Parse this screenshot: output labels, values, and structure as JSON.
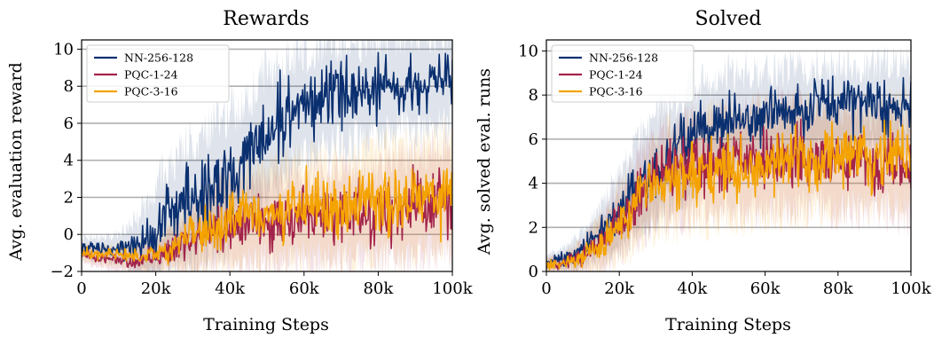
{
  "chart_data": [
    {
      "type": "line",
      "title": "Rewards",
      "xlabel": "Training Steps",
      "ylabel": "Avg. evaluation reward",
      "xlim": [
        0,
        100000
      ],
      "ylim": [
        -2,
        10.5
      ],
      "x_ticks": [
        0,
        20000,
        40000,
        60000,
        80000,
        100000
      ],
      "x_tick_labels": [
        "0",
        "20k",
        "40k",
        "60k",
        "80k",
        "100k"
      ],
      "y_ticks": [
        -2,
        0,
        2,
        4,
        6,
        8,
        10
      ],
      "y_tick_labels": [
        "−2",
        "0",
        "2",
        "4",
        "6",
        "8",
        "10"
      ],
      "grid": "horizontal",
      "legend_position": "top-left",
      "series": [
        {
          "name": "NN-256-128",
          "color": "#0b3070",
          "x": [
            0,
            5000,
            10000,
            15000,
            18000,
            20000,
            25000,
            30000,
            35000,
            40000,
            45000,
            50000,
            55000,
            60000,
            65000,
            70000,
            75000,
            80000,
            85000,
            90000,
            95000,
            100000
          ],
          "y": [
            -0.7,
            -0.8,
            -0.7,
            -0.7,
            -0.4,
            0.4,
            1.2,
            1.9,
            2.6,
            3.3,
            4.3,
            5.5,
            6.3,
            6.9,
            7.3,
            7.6,
            7.7,
            7.9,
            8.1,
            8.2,
            8.3,
            8.4
          ],
          "spread": [
            0.5,
            0.6,
            0.7,
            1.5,
            2.2,
            2.5,
            3.0,
            3.2,
            3.4,
            3.4,
            3.3,
            3.2,
            3.0,
            2.9,
            2.8,
            2.7,
            2.6,
            2.6,
            2.5,
            2.5,
            2.5,
            2.5
          ]
        },
        {
          "name": "PQC-1-24",
          "color": "#a3234a",
          "x": [
            0,
            5000,
            10000,
            15000,
            20000,
            25000,
            30000,
            35000,
            40000,
            45000,
            50000,
            55000,
            60000,
            65000,
            70000,
            75000,
            80000,
            85000,
            90000,
            95000,
            100000
          ],
          "y": [
            -1.0,
            -1.3,
            -1.4,
            -1.4,
            -1.2,
            -0.7,
            -0.2,
            0.3,
            0.5,
            0.6,
            0.6,
            0.7,
            0.8,
            0.9,
            1.0,
            1.0,
            1.1,
            1.3,
            1.5,
            1.7,
            1.8
          ],
          "spread": [
            0.4,
            0.5,
            0.6,
            0.7,
            0.8,
            1.2,
            1.6,
            2.0,
            2.2,
            2.3,
            2.4,
            2.4,
            2.5,
            2.5,
            2.5,
            2.6,
            2.6,
            2.7,
            2.8,
            2.9,
            3.0
          ]
        },
        {
          "name": "PQC-3-16",
          "color": "#f5a300",
          "x": [
            0,
            5000,
            10000,
            15000,
            20000,
            25000,
            30000,
            35000,
            40000,
            45000,
            50000,
            55000,
            60000,
            65000,
            70000,
            75000,
            80000,
            85000,
            90000,
            95000,
            100000
          ],
          "y": [
            -1.0,
            -1.1,
            -1.1,
            -1.2,
            -1.0,
            -0.6,
            -0.1,
            0.4,
            0.8,
            1.0,
            1.2,
            1.3,
            1.4,
            1.4,
            1.5,
            1.6,
            1.7,
            1.8,
            2.0,
            2.1,
            2.3
          ],
          "spread": [
            0.4,
            0.5,
            0.6,
            0.7,
            0.9,
            1.3,
            1.7,
            2.1,
            2.3,
            2.4,
            2.5,
            2.6,
            2.6,
            2.7,
            2.7,
            2.8,
            2.8,
            2.9,
            2.9,
            3.0,
            3.0
          ]
        }
      ]
    },
    {
      "type": "line",
      "title": "Solved",
      "xlabel": "Training Steps",
      "ylabel": "Avg. solved eval. runs",
      "xlim": [
        0,
        100000
      ],
      "ylim": [
        0,
        10.5
      ],
      "x_ticks": [
        0,
        20000,
        40000,
        60000,
        80000,
        100000
      ],
      "x_tick_labels": [
        "0",
        "20k",
        "40k",
        "60k",
        "80k",
        "100k"
      ],
      "y_ticks": [
        0,
        2,
        4,
        6,
        8,
        10
      ],
      "y_tick_labels": [
        "0",
        "2",
        "4",
        "6",
        "8",
        "10"
      ],
      "grid": "horizontal",
      "legend_position": "top-left",
      "series": [
        {
          "name": "NN-256-128",
          "color": "#0b3070",
          "x": [
            0,
            5000,
            10000,
            15000,
            20000,
            25000,
            30000,
            35000,
            40000,
            45000,
            50000,
            55000,
            60000,
            65000,
            70000,
            75000,
            80000,
            85000,
            90000,
            95000,
            100000
          ],
          "y": [
            0.4,
            0.6,
            1.0,
            1.8,
            2.8,
            3.9,
            4.8,
            5.5,
            6.1,
            6.5,
            6.8,
            7.0,
            7.1,
            7.2,
            7.3,
            7.3,
            7.4,
            7.4,
            7.5,
            7.5,
            7.6
          ],
          "spread": [
            0.3,
            0.5,
            0.8,
            1.2,
            1.6,
            2.0,
            2.2,
            2.3,
            2.3,
            2.2,
            2.2,
            2.1,
            2.1,
            2.0,
            2.0,
            2.0,
            1.9,
            1.9,
            1.9,
            1.9,
            1.9
          ]
        },
        {
          "name": "PQC-1-24",
          "color": "#a3234a",
          "x": [
            0,
            5000,
            10000,
            15000,
            20000,
            25000,
            30000,
            35000,
            40000,
            45000,
            50000,
            55000,
            60000,
            65000,
            70000,
            75000,
            80000,
            85000,
            90000,
            95000,
            100000
          ],
          "y": [
            0.3,
            0.4,
            0.7,
            1.3,
            2.2,
            3.3,
            4.2,
            4.6,
            4.8,
            4.9,
            5.0,
            5.1,
            5.1,
            5.2,
            5.2,
            5.2,
            5.1,
            5.1,
            5.0,
            4.9,
            4.7
          ],
          "spread": [
            0.3,
            0.4,
            0.7,
            1.1,
            1.5,
            1.8,
            2.0,
            2.1,
            2.2,
            2.2,
            2.2,
            2.3,
            2.3,
            2.3,
            2.3,
            2.3,
            2.3,
            2.3,
            2.3,
            2.3,
            2.3
          ]
        },
        {
          "name": "PQC-3-16",
          "color": "#f5a300",
          "x": [
            0,
            5000,
            10000,
            15000,
            20000,
            25000,
            30000,
            35000,
            40000,
            45000,
            50000,
            55000,
            60000,
            65000,
            70000,
            75000,
            80000,
            85000,
            90000,
            95000,
            100000
          ],
          "y": [
            0.3,
            0.4,
            0.7,
            1.3,
            2.1,
            3.1,
            3.9,
            4.3,
            4.5,
            4.6,
            4.7,
            4.8,
            4.9,
            5.0,
            5.0,
            5.1,
            5.1,
            5.2,
            5.2,
            5.3,
            5.4
          ],
          "spread": [
            0.3,
            0.4,
            0.7,
            1.1,
            1.5,
            1.8,
            2.0,
            2.2,
            2.2,
            2.3,
            2.3,
            2.3,
            2.3,
            2.3,
            2.3,
            2.3,
            2.3,
            2.3,
            2.3,
            2.3,
            2.3
          ]
        }
      ]
    }
  ]
}
